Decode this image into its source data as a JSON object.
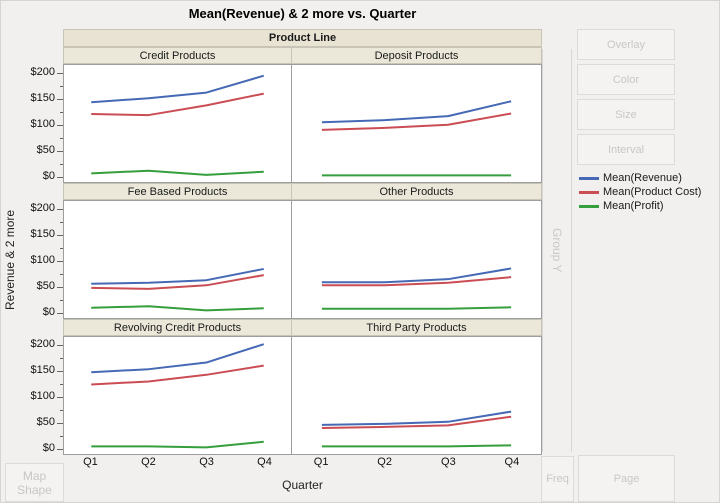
{
  "title": "Mean(Revenue) & 2 more vs. Quarter",
  "group_x_header": "Product Line",
  "y_axis_title": "Revenue & 2 more",
  "x_axis_title": "Quarter",
  "drop_zones": {
    "overlay": "Overlay",
    "color": "Color",
    "size": "Size",
    "interval": "Interval",
    "group_y": "Group Y",
    "freq": "Freq",
    "page": "Page",
    "map_shape": "Map Shape"
  },
  "legend": [
    {
      "label": "Mean(Revenue)",
      "color": "#4569b4"
    },
    {
      "label": "Mean(Product Cost)",
      "color": "#cb4d54"
    },
    {
      "label": "Mean(Profit)",
      "color": "#369f3d"
    }
  ],
  "colors": {
    "revenue_line": "#4569b4",
    "product_cost_line": "#cb4d54",
    "profit_line": "#369f3d",
    "panel_header_bg": "#ebe8da",
    "group_band_bg": "#e8e3d3",
    "disabled_text": "#c9c7c4",
    "plot_border": "#9d9d9d"
  },
  "chart_data": {
    "type": "line",
    "x": [
      "Q1",
      "Q2",
      "Q3",
      "Q4"
    ],
    "xlabel": "Quarter",
    "ylabel": "Revenue & 2 more",
    "ylim": [
      -12,
      217
    ],
    "yticks": [
      0,
      50,
      100,
      150,
      200
    ],
    "ytick_labels": [
      "$0",
      "$50",
      "$100",
      "$150",
      "$200"
    ],
    "minor_yticks": [
      25,
      75,
      125,
      175
    ],
    "grid": false,
    "legend_position": "right",
    "facet_by": "Product Line",
    "series_names": [
      "Mean(Revenue)",
      "Mean(Product Cost)",
      "Mean(Profit)"
    ],
    "series_colors": [
      "#4569b4",
      "#cb4d54",
      "#369f3d"
    ],
    "panels": [
      {
        "name": "Credit Products",
        "series": [
          {
            "name": "Mean(Revenue)",
            "values": [
              144,
              152,
              163,
              196
            ]
          },
          {
            "name": "Mean(Product Cost)",
            "values": [
              121,
              119,
              138,
              161
            ]
          },
          {
            "name": "Mean(Profit)",
            "values": [
              5,
              10,
              2,
              8
            ]
          }
        ]
      },
      {
        "name": "Deposit Products",
        "series": [
          {
            "name": "Mean(Revenue)",
            "values": [
              105,
              109,
              117,
              146
            ]
          },
          {
            "name": "Mean(Product Cost)",
            "values": [
              90,
              94,
              100,
              122
            ]
          },
          {
            "name": "Mean(Profit)",
            "values": [
              1,
              1,
              1,
              1
            ]
          }
        ]
      },
      {
        "name": "Fee Based Products",
        "series": [
          {
            "name": "Mean(Revenue)",
            "values": [
              55,
              57,
              62,
              84
            ]
          },
          {
            "name": "Mean(Product Cost)",
            "values": [
              47,
              45,
              52,
              72
            ]
          },
          {
            "name": "Mean(Profit)",
            "values": [
              8,
              11,
              3,
              7
            ]
          }
        ]
      },
      {
        "name": "Other Products",
        "series": [
          {
            "name": "Mean(Revenue)",
            "values": [
              58,
              58,
              64,
              85
            ]
          },
          {
            "name": "Mean(Product Cost)",
            "values": [
              52,
              52,
              57,
              68
            ]
          },
          {
            "name": "Mean(Profit)",
            "values": [
              6,
              6,
              6,
              9
            ]
          }
        ]
      },
      {
        "name": "Revolving Credit Products",
        "series": [
          {
            "name": "Mean(Revenue)",
            "values": [
              148,
              154,
              167,
              203
            ]
          },
          {
            "name": "Mean(Product Cost)",
            "values": [
              124,
              130,
              143,
              161
            ]
          },
          {
            "name": "Mean(Profit)",
            "values": [
              3,
              3,
              1,
              12
            ]
          }
        ]
      },
      {
        "name": "Third Party Products",
        "series": [
          {
            "name": "Mean(Revenue)",
            "values": [
              45,
              47,
              51,
              71
            ]
          },
          {
            "name": "Mean(Product Cost)",
            "values": [
              39,
              41,
              44,
              61
            ]
          },
          {
            "name": "Mean(Profit)",
            "values": [
              3,
              3,
              3,
              5
            ]
          }
        ]
      }
    ]
  }
}
